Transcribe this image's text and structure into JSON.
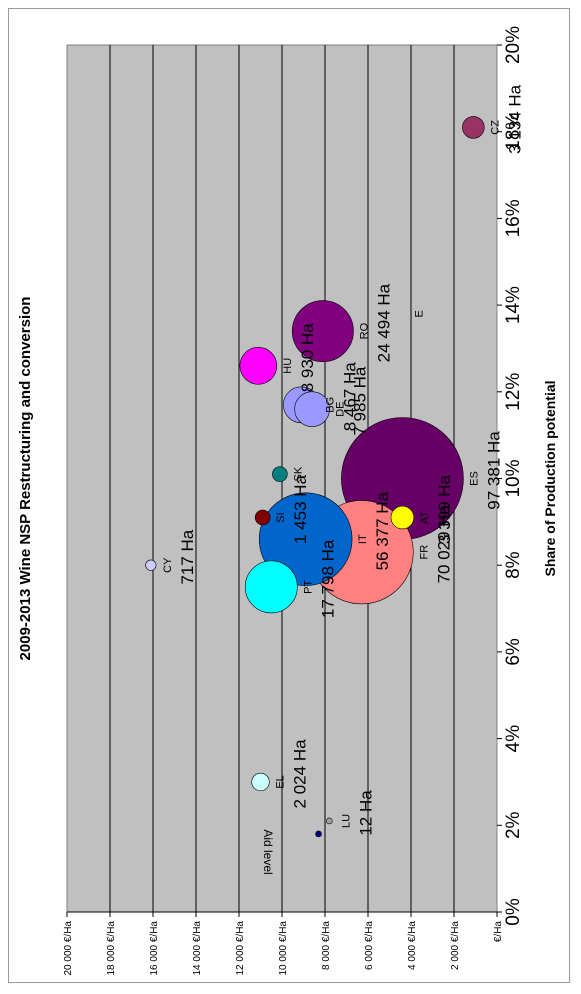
{
  "chart_data": {
    "type": "scatter",
    "title": "2009-2013 Wine NSP Restructuring and conversion",
    "xlabel": "Share of Production potential",
    "ylabel": "Aid level",
    "xlim": [
      0,
      20
    ],
    "ylim": [
      0,
      20000
    ],
    "x_ticks": [
      "0%",
      "2%",
      "4%",
      "6%",
      "8%",
      "10%",
      "12%",
      "14%",
      "16%",
      "18%",
      "20%"
    ],
    "y_ticks": [
      "€/Ha",
      "2 000 €/Ha",
      "4 000 €/Ha",
      "6 000 €/Ha",
      "8 000 €/Ha",
      "10 000 €/Ha",
      "12 000 €/Ha",
      "14 000 €/Ha",
      "16 000 €/Ha",
      "18 000 €/Ha",
      "20 000 €/Ha"
    ],
    "grid": true,
    "bubble_size_unit": "Ha",
    "points": [
      {
        "code": "ES",
        "x": 10.0,
        "y": 4400,
        "size": 97381,
        "size_label": "97 381 Ha",
        "color": "#660066"
      },
      {
        "code": "FR",
        "x": 8.3,
        "y": 6300,
        "size": 70029,
        "size_label": "70 029 Ha",
        "color": "#ff8080"
      },
      {
        "code": "IT",
        "x": 8.6,
        "y": 8900,
        "size": 56377,
        "size_label": "56 377 Ha",
        "color": "#0066cc"
      },
      {
        "code": "RO",
        "x": 13.4,
        "y": 8100,
        "size": 24494,
        "size_label": "24 494 Ha",
        "color": "#800080"
      },
      {
        "code": "PT",
        "x": 7.5,
        "y": 10500,
        "size": 17798,
        "size_label": "17 798 Ha",
        "color": "#00ffff"
      },
      {
        "code": "HU",
        "x": 12.6,
        "y": 11100,
        "size": 8930,
        "size_label": "8 930 Ha",
        "color": "#ff00ff"
      },
      {
        "code": "BG",
        "x": 11.7,
        "y": 9100,
        "size": 8467,
        "size_label": "8 467 Ha",
        "color": "#9999ff"
      },
      {
        "code": "DE",
        "x": 11.6,
        "y": 8600,
        "size": 7985,
        "size_label": "7 985 Ha",
        "color": "#9999ff"
      },
      {
        "code": "AT",
        "x": 9.1,
        "y": 4400,
        "size": 3399,
        "size_label": "3 399 Ha",
        "color": "#ffff00"
      },
      {
        "code": "CZ",
        "x": 18.1,
        "y": 1100,
        "size": 3134,
        "size_label": "3 134 Ha",
        "color": "#993366"
      },
      {
        "code": "EL",
        "x": 3.0,
        "y": 11000,
        "size": 2024,
        "size_label": "2 024 Ha",
        "color": "#ccffff"
      },
      {
        "code": "SI",
        "x": 9.1,
        "y": 10900,
        "size": 1453,
        "size_label": "1 453 Ha",
        "color": "#800000"
      },
      {
        "code": "SK",
        "x": 10.1,
        "y": 10100,
        "size": 1453,
        "size_label": "",
        "color": "#008080"
      },
      {
        "code": "CY",
        "x": 8.0,
        "y": 16100,
        "size": 717,
        "size_label": "717 Ha",
        "color": "#ccccff"
      },
      {
        "code": "LU",
        "x": 2.1,
        "y": 7800,
        "size": 12,
        "size_label": "12 Ha",
        "color": "#a0a0a0"
      },
      {
        "code": "",
        "x": 1.8,
        "y": 8300,
        "size": 12,
        "size_label": "",
        "color": "#000080"
      },
      {
        "code": "E",
        "x": 13.8,
        "y": 4400,
        "size": 0,
        "size_label": "",
        "color": ""
      }
    ]
  }
}
